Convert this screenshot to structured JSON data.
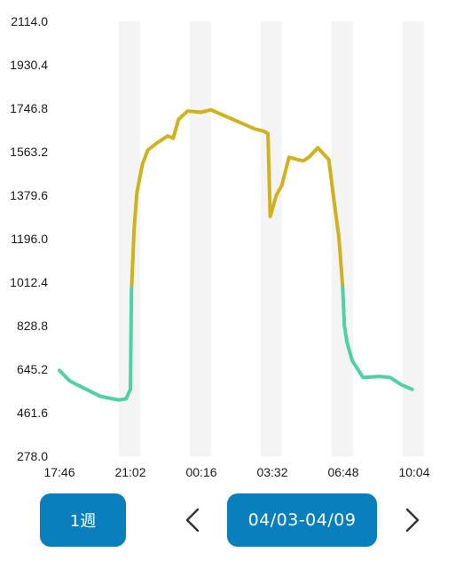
{
  "chart_data": {
    "type": "line",
    "ylim": [
      278.0,
      2114.0
    ],
    "y_ticks": [
      "2114.0",
      "1930.4",
      "1746.8",
      "1563.2",
      "1379.6",
      "1196.0",
      "1012.4",
      "828.8",
      "645.2",
      "461.6",
      "278.0"
    ],
    "x_ticks": [
      "17:46",
      "21:02",
      "00:16",
      "03:32",
      "06:48",
      "10:04"
    ],
    "highlight_threshold": 1000,
    "colors": {
      "low": "#4fd1a5",
      "high": "#d1b11e",
      "band": "#f4f4f4"
    },
    "series": [
      {
        "x": [
          "17:46",
          "18:15",
          "19:00",
          "19:40",
          "20:30",
          "20:50",
          "21:02",
          "21:05",
          "21:12",
          "21:20",
          "21:35",
          "21:50",
          "22:15",
          "22:45",
          "23:00",
          "23:15",
          "23:40",
          "00:16",
          "00:45",
          "01:15",
          "01:45",
          "02:15",
          "02:45",
          "03:10",
          "03:22",
          "03:28",
          "03:32",
          "03:45",
          "04:00",
          "04:20",
          "04:45",
          "05:00",
          "05:15",
          "05:40",
          "06:10",
          "06:25",
          "06:38",
          "06:48",
          "06:53",
          "07:00",
          "07:15",
          "07:45",
          "08:30",
          "09:00",
          "09:30",
          "10:00"
        ],
        "y": [
          640,
          595,
          560,
          530,
          515,
          520,
          560,
          980,
          1230,
          1390,
          1510,
          1570,
          1600,
          1630,
          1620,
          1700,
          1735,
          1730,
          1740,
          1720,
          1700,
          1680,
          1660,
          1650,
          1640,
          1290,
          1310,
          1380,
          1420,
          1540,
          1530,
          1525,
          1540,
          1580,
          1530,
          1350,
          1200,
          1000,
          830,
          760,
          680,
          610,
          615,
          610,
          580,
          560
        ]
      }
    ]
  },
  "controls": {
    "period_label": "1週",
    "date_range_label": "04/03-04/09",
    "prev_icon": "chevron-left-icon",
    "next_icon": "chevron-right-icon",
    "button_color": "#0a7fbe"
  }
}
